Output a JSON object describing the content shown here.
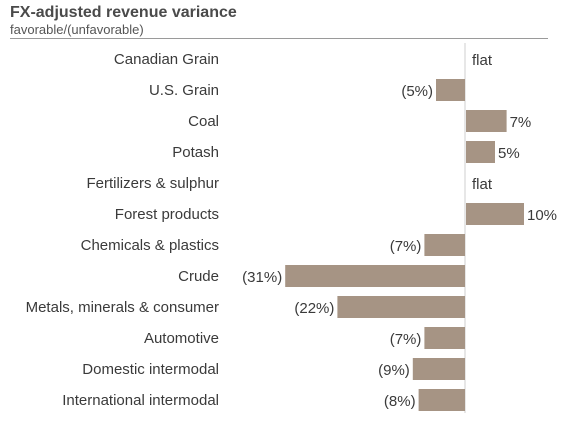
{
  "chart_data": {
    "type": "bar",
    "orientation": "horizontal",
    "title": "FX-adjusted revenue variance",
    "subtitle": "favorable/(unfavorable)",
    "categories": [
      "Canadian Grain",
      "U.S. Grain",
      "Coal",
      "Potash",
      "Fertilizers & sulphur",
      "Forest products",
      "Chemicals & plastics",
      "Crude",
      "Metals, minerals & consumer",
      "Automotive",
      "Domestic intermodal",
      "International intermodal"
    ],
    "values": [
      0,
      -5,
      7,
      5,
      0,
      10,
      -7,
      -31,
      -22,
      -7,
      -9,
      -8
    ],
    "data_labels": [
      "flat",
      "(5%)",
      "7%",
      "5%",
      "flat",
      "10%",
      "(7%)",
      "(31%)",
      "(22%)",
      "(7%)",
      "(9%)",
      "(8%)"
    ],
    "unit": "%",
    "bar_color": "#a69484",
    "axis_color": "#cfcfcf",
    "grid": false,
    "legend": "none"
  }
}
